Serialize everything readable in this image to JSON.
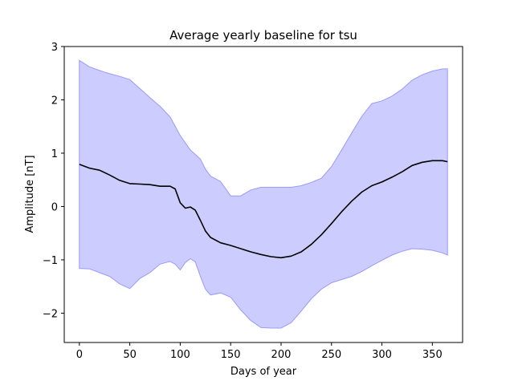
{
  "chart_data": {
    "type": "line",
    "title": "Average yearly baseline for tsu",
    "xlabel": "Days of year",
    "ylabel": "Amplitude [nT]",
    "xlim": [
      -15,
      380
    ],
    "ylim": [
      -2.55,
      3.0
    ],
    "xticks": [
      0,
      50,
      100,
      150,
      200,
      250,
      300,
      350
    ],
    "yticks": [
      -2,
      -1,
      0,
      1,
      2,
      3
    ],
    "xtick_labels": [
      "0",
      "50",
      "100",
      "150",
      "200",
      "250",
      "300",
      "350"
    ],
    "ytick_labels": [
      "−2",
      "−1",
      "0",
      "1",
      "2",
      "3"
    ],
    "grid": false,
    "colors": {
      "line": "#000000",
      "band_fill": "#ccccff",
      "band_edge": "#9a9aff"
    },
    "mean": {
      "x": [
        0,
        10,
        20,
        30,
        40,
        50,
        60,
        70,
        80,
        90,
        95,
        100,
        105,
        110,
        115,
        120,
        125,
        130,
        140,
        150,
        160,
        170,
        180,
        190,
        200,
        210,
        220,
        230,
        240,
        250,
        260,
        270,
        280,
        290,
        300,
        310,
        320,
        330,
        340,
        350,
        360,
        365
      ],
      "y": [
        0.79,
        0.72,
        0.68,
        0.59,
        0.49,
        0.43,
        0.42,
        0.41,
        0.38,
        0.38,
        0.33,
        0.07,
        -0.03,
        -0.01,
        -0.07,
        -0.26,
        -0.46,
        -0.58,
        -0.68,
        -0.73,
        -0.79,
        -0.85,
        -0.9,
        -0.94,
        -0.96,
        -0.93,
        -0.85,
        -0.71,
        -0.53,
        -0.32,
        -0.1,
        0.1,
        0.27,
        0.39,
        0.46,
        0.55,
        0.65,
        0.77,
        0.83,
        0.86,
        0.86,
        0.84
      ]
    },
    "upper": {
      "x": [
        0,
        10,
        20,
        30,
        40,
        50,
        60,
        70,
        80,
        90,
        100,
        110,
        120,
        125,
        130,
        140,
        150,
        160,
        170,
        180,
        190,
        200,
        210,
        220,
        230,
        240,
        250,
        260,
        270,
        280,
        290,
        300,
        310,
        320,
        330,
        340,
        350,
        360,
        365
      ],
      "y": [
        2.74,
        2.62,
        2.55,
        2.49,
        2.44,
        2.38,
        2.21,
        2.04,
        1.88,
        1.68,
        1.33,
        1.06,
        0.89,
        0.7,
        0.57,
        0.47,
        0.2,
        0.2,
        0.31,
        0.36,
        0.36,
        0.36,
        0.36,
        0.39,
        0.45,
        0.53,
        0.75,
        1.06,
        1.38,
        1.69,
        1.93,
        1.98,
        2.07,
        2.2,
        2.37,
        2.47,
        2.54,
        2.58,
        2.58
      ]
    },
    "lower": {
      "x": [
        0,
        10,
        20,
        30,
        40,
        50,
        60,
        70,
        80,
        90,
        95,
        100,
        105,
        110,
        115,
        120,
        125,
        130,
        140,
        150,
        160,
        170,
        180,
        190,
        200,
        210,
        220,
        230,
        240,
        250,
        260,
        270,
        280,
        290,
        300,
        310,
        320,
        330,
        340,
        350,
        360,
        365
      ],
      "y": [
        -1.16,
        -1.17,
        -1.24,
        -1.31,
        -1.45,
        -1.54,
        -1.35,
        -1.24,
        -1.08,
        -1.03,
        -1.08,
        -1.19,
        -1.05,
        -0.98,
        -1.04,
        -1.31,
        -1.55,
        -1.66,
        -1.62,
        -1.7,
        -1.94,
        -2.14,
        -2.27,
        -2.28,
        -2.28,
        -2.18,
        -1.96,
        -1.73,
        -1.55,
        -1.43,
        -1.37,
        -1.31,
        -1.22,
        -1.11,
        -1.01,
        -0.91,
        -0.84,
        -0.79,
        -0.8,
        -0.82,
        -0.87,
        -0.91
      ]
    }
  }
}
